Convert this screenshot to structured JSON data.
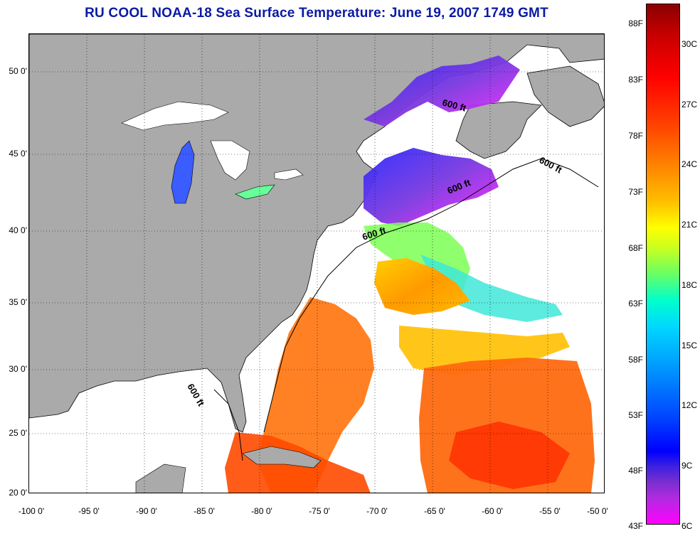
{
  "title": "RU COOL  NOAA-18  Sea Surface Temperature:  June 19, 2007 1749 GMT",
  "latitude_labels": [
    "50 0'",
    "45 0'",
    "40 0'",
    "35 0'",
    "30 0'",
    "25 0'",
    "20 0'"
  ],
  "longitude_labels": [
    "-100 0'",
    "-95 0'",
    "-90 0'",
    "-85 0'",
    "-80 0'",
    "-75 0'",
    "-70 0'",
    "-65 0'",
    "-60 0'",
    "-55 0'",
    "-50 0'"
  ],
  "contour_label": "600 ft",
  "colorbar": {
    "fahrenheit_labels": [
      "88F",
      "83F",
      "78F",
      "73F",
      "68F",
      "63F",
      "58F",
      "53F",
      "48F",
      "43F"
    ],
    "celsius_labels": [
      "30C",
      "27C",
      "24C",
      "21C",
      "18C",
      "15C",
      "12C",
      "9C",
      "6C"
    ],
    "min_color": "#ff00ff",
    "max_color": "#8b0000"
  },
  "colors": {
    "land": "#aaaaaa",
    "title": "#0b1aa3",
    "no_data": "#ffffff"
  }
}
